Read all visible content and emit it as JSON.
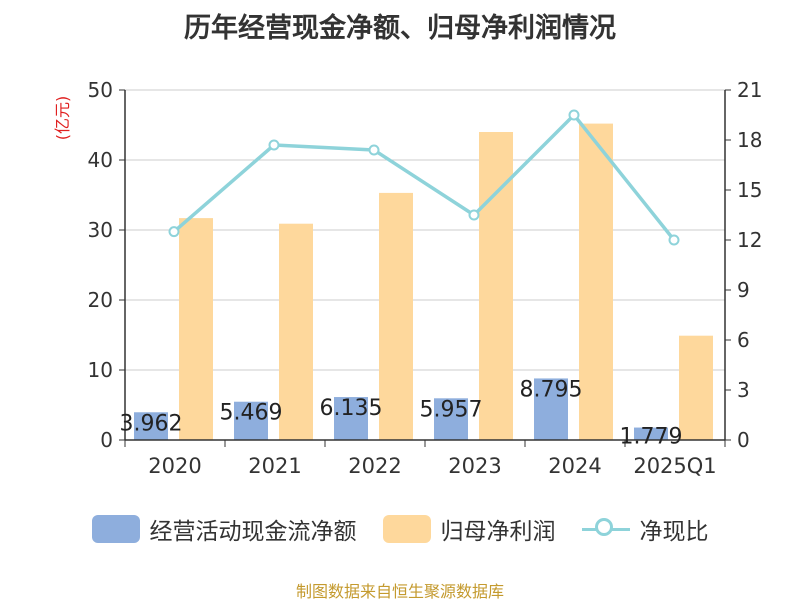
{
  "title": "历年经营现金净额、归母净利润情况",
  "source": "制图数据来自恒生聚源数据库",
  "chart_data": {
    "type": "bar",
    "categories": [
      "2020",
      "2021",
      "2022",
      "2023",
      "2024",
      "2025Q1"
    ],
    "series": [
      {
        "name": "经营活动现金流净额",
        "kind": "bar",
        "axis": "left",
        "color": "#8eaedd",
        "values": [
          3.962,
          5.469,
          6.135,
          5.957,
          8.795,
          1.779
        ],
        "labels": [
          "3.962",
          "5.469",
          "6.135",
          "5.957",
          "8.795",
          "1.779"
        ]
      },
      {
        "name": "归母净利润",
        "kind": "bar",
        "axis": "left",
        "color": "#fed89c",
        "values": [
          31.7,
          30.9,
          35.3,
          44.0,
          45.2,
          14.9
        ]
      },
      {
        "name": "净现比",
        "kind": "line",
        "axis": "right",
        "color": "#8ed3da",
        "values": [
          12.5,
          17.7,
          17.4,
          13.5,
          19.5,
          12.0
        ]
      }
    ],
    "ylabel_left": "(亿元)",
    "ylim_left": [
      0,
      50
    ],
    "yticks_left": [
      "0",
      "10",
      "20",
      "30",
      "40",
      "50"
    ],
    "ylim_right": [
      0,
      21
    ],
    "yticks_right": [
      "0",
      "3",
      "6",
      "9",
      "12",
      "15",
      "18",
      "21"
    ],
    "grid": true,
    "legend_position": "bottom"
  }
}
